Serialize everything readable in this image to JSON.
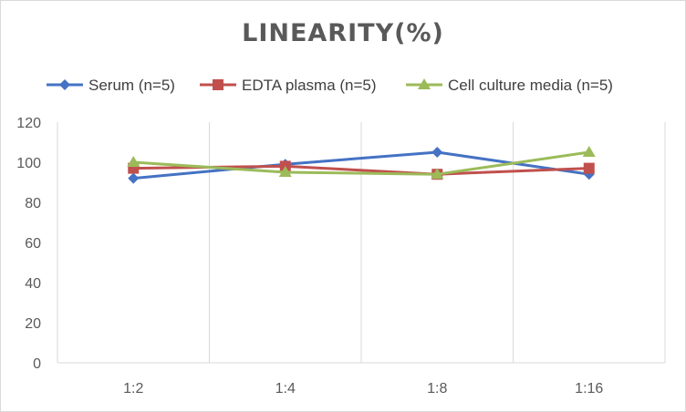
{
  "chart_data": {
    "type": "line",
    "title": "LINEARITY(%)",
    "categories": [
      "1:2",
      "1:4",
      "1:8",
      "1:16"
    ],
    "ylim": [
      0,
      120
    ],
    "yticks": [
      0,
      20,
      40,
      60,
      80,
      100,
      120
    ],
    "grid": "vertical category lines",
    "legend": "top",
    "series": [
      {
        "name": "Serum (n=5)",
        "values": [
          92,
          99,
          105,
          94
        ],
        "color": "#4472C4",
        "marker": "diamond"
      },
      {
        "name": "EDTA plasma (n=5)",
        "values": [
          97,
          98,
          94,
          97
        ],
        "color": "#C0504D",
        "marker": "square"
      },
      {
        "name": "Cell culture media (n=5)",
        "values": [
          100,
          95,
          94,
          105
        ],
        "color": "#9BBB59",
        "marker": "triangle"
      }
    ]
  }
}
